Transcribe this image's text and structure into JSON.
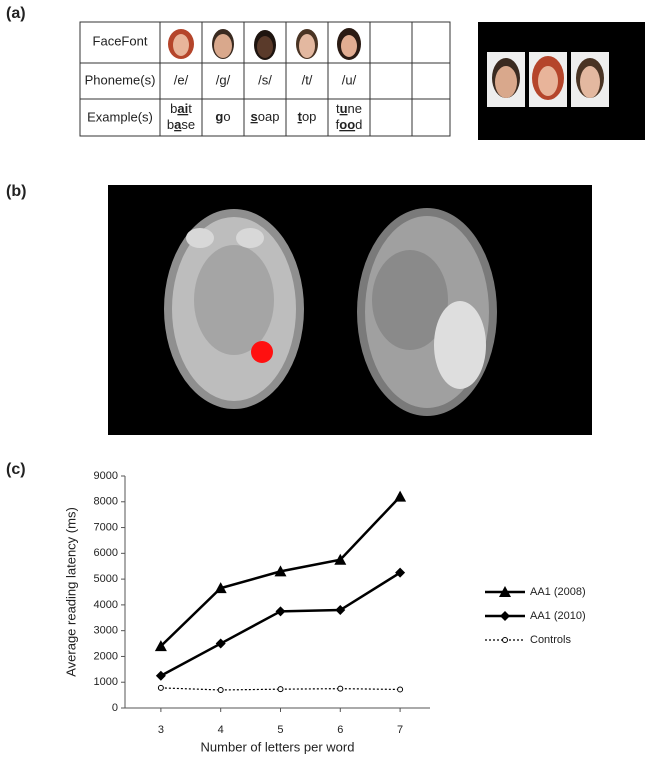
{
  "panels": {
    "a": "(a)",
    "b": "(b)",
    "c": "(c)"
  },
  "table": {
    "row_labels": [
      "FaceFont",
      "Phoneme(s)",
      "Example(s)"
    ],
    "phonemes": [
      "/e/",
      "/g/",
      "/s/",
      "/t/",
      "/u/"
    ],
    "examples": [
      [
        [
          {
            "text": "b"
          },
          {
            "text": "ai",
            "key": true
          },
          {
            "text": "t"
          }
        ],
        [
          {
            "text": "b"
          },
          {
            "text": "a",
            "key": true
          },
          {
            "text": "se"
          }
        ]
      ],
      [
        [
          {
            "text": "g",
            "key": true
          },
          {
            "text": "o"
          }
        ]
      ],
      [
        [
          {
            "text": "s",
            "key": true
          },
          {
            "text": "oap"
          }
        ]
      ],
      [
        [
          {
            "text": "t",
            "key": true
          },
          {
            "text": "op"
          }
        ]
      ],
      [
        [
          {
            "text": "t"
          },
          {
            "text": "u",
            "key": true
          },
          {
            "text": "ne"
          }
        ],
        [
          {
            "text": "f"
          },
          {
            "text": "oo",
            "key": true
          },
          {
            "text": "d"
          }
        ]
      ]
    ]
  },
  "chart_data": {
    "type": "line",
    "xlabel": "Number of letters per word",
    "ylabel": "Average  reading  latency (ms)",
    "x": [
      3,
      4,
      5,
      6,
      7
    ],
    "xlim": [
      2.4,
      7.5
    ],
    "xticks": [
      3,
      4,
      5,
      6,
      7
    ],
    "ylim": [
      0,
      9000
    ],
    "yticks": [
      0,
      1000,
      2000,
      3000,
      4000,
      5000,
      6000,
      7000,
      8000,
      9000
    ],
    "legend": "right",
    "series": [
      {
        "name": "AA1 (2008)",
        "color": "#000000",
        "marker": "triangle",
        "values": [
          2400,
          4650,
          5300,
          5750,
          8200
        ]
      },
      {
        "name": "AA1 (2010)",
        "color": "#000000",
        "marker": "diamond",
        "values": [
          1250,
          2500,
          3750,
          3800,
          5250
        ]
      },
      {
        "name": "Controls",
        "color": "#000000",
        "marker": "circle",
        "dash": true,
        "values": [
          780,
          700,
          730,
          750,
          720
        ]
      }
    ]
  }
}
